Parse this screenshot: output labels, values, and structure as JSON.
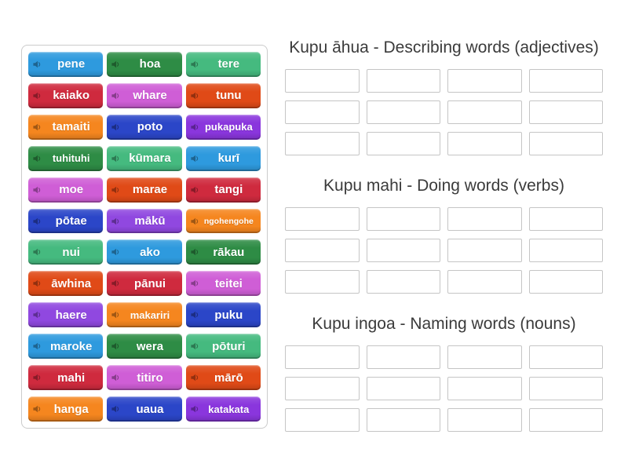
{
  "page": {
    "background": "#ffffff",
    "heading_color": "#3b3b3b",
    "panel_border": "#cbcbcb",
    "slot_border": "#c5c5c5"
  },
  "word_bank": {
    "audio_icon": "speaker-icon",
    "tiles": [
      {
        "label": "pene",
        "color": "#2e9ade"
      },
      {
        "label": "hoa",
        "color": "#2e8c45"
      },
      {
        "label": "tere",
        "color": "#45ba7f"
      },
      {
        "label": "kaiako",
        "color": "#cf2a3e"
      },
      {
        "label": "whare",
        "color": "#cf5ed6"
      },
      {
        "label": "tunu",
        "color": "#e04a17"
      },
      {
        "label": "tamaiti",
        "color": "#f5861f"
      },
      {
        "label": "poto",
        "color": "#2b46c8"
      },
      {
        "label": "pukapuka",
        "color": "#8a36dd"
      },
      {
        "label": "tuhituhi",
        "color": "#2e8c45"
      },
      {
        "label": "kūmara",
        "color": "#45ba7f"
      },
      {
        "label": "kurī",
        "color": "#2e9ade"
      },
      {
        "label": "moe",
        "color": "#cf5ed6"
      },
      {
        "label": "marae",
        "color": "#e04a17"
      },
      {
        "label": "tangi",
        "color": "#cf2a3e"
      },
      {
        "label": "pōtae",
        "color": "#2b46c8"
      },
      {
        "label": "mākū",
        "color": "#9048e0"
      },
      {
        "label": "ngohengohe",
        "color": "#f5861f"
      },
      {
        "label": "nui",
        "color": "#45ba7f"
      },
      {
        "label": "ako",
        "color": "#2e9ade"
      },
      {
        "label": "rākau",
        "color": "#2e8c45"
      },
      {
        "label": "āwhina",
        "color": "#e04a17"
      },
      {
        "label": "pānui",
        "color": "#cf2a3e"
      },
      {
        "label": "teitei",
        "color": "#cf5ed6"
      },
      {
        "label": "haere",
        "color": "#9048e0"
      },
      {
        "label": "makariri",
        "color": "#f5861f"
      },
      {
        "label": "puku",
        "color": "#2b46c8"
      },
      {
        "label": "maroke",
        "color": "#2e9ade"
      },
      {
        "label": "wera",
        "color": "#2e8c45"
      },
      {
        "label": "pōturi",
        "color": "#45ba7f"
      },
      {
        "label": "mahi",
        "color": "#cf2a3e"
      },
      {
        "label": "titiro",
        "color": "#cf5ed6"
      },
      {
        "label": "mārō",
        "color": "#e04a17"
      },
      {
        "label": "hanga",
        "color": "#f5861f"
      },
      {
        "label": "uaua",
        "color": "#2b46c8"
      },
      {
        "label": "katakata",
        "color": "#8a36dd"
      }
    ]
  },
  "groups": [
    {
      "title": "Kupu āhua - Describing words (adjectives)",
      "slot_count": 12
    },
    {
      "title": "Kupu mahi - Doing words (verbs)",
      "slot_count": 12
    },
    {
      "title": "Kupu ingoa - Naming words (nouns)",
      "slot_count": 12
    }
  ]
}
